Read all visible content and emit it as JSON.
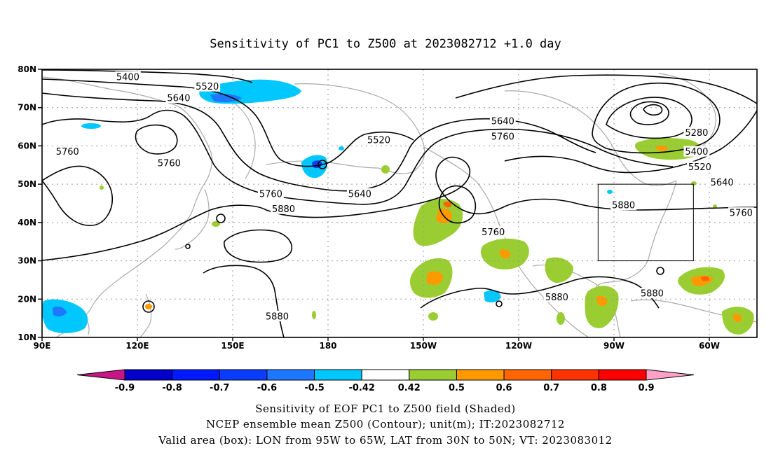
{
  "title": "Sensitivity of PC1 to Z500 at 2023082712 +1.0 day",
  "map": {
    "lat_labels": [
      "80N",
      "70N",
      "60N",
      "50N",
      "40N",
      "30N",
      "20N",
      "10N"
    ],
    "lon_labels": [
      "90E",
      "120E",
      "150E",
      "180",
      "150W",
      "120W",
      "90W",
      "60W"
    ],
    "grid": true,
    "valid_box": {
      "lon_range": [
        "95W",
        "65W"
      ],
      "lat_range": [
        "30N",
        "50N"
      ]
    },
    "contour_labels": [
      {
        "value": "5400",
        "lon": 117,
        "lat": 78
      },
      {
        "value": "5520",
        "lon": 142,
        "lat": 75.5
      },
      {
        "value": "5640",
        "lon": 133,
        "lat": 72.5
      },
      {
        "value": "5760",
        "lon": 98,
        "lat": 58.5
      },
      {
        "value": "5760",
        "lon": 130,
        "lat": 55.5
      },
      {
        "value": "5520",
        "lon": 196,
        "lat": 61.5
      },
      {
        "value": "5640",
        "lon": 235,
        "lat": 66.5
      },
      {
        "value": "5760",
        "lon": 235,
        "lat": 62.5
      },
      {
        "value": "5640",
        "lon": 190,
        "lat": 47.5
      },
      {
        "value": "5760",
        "lon": 162,
        "lat": 47.5
      },
      {
        "value": "5880",
        "lon": 166,
        "lat": 43.5
      },
      {
        "value": "5760",
        "lon": 232,
        "lat": 37.5
      },
      {
        "value": "5880",
        "lon": 273,
        "lat": 44.5
      },
      {
        "value": "5280",
        "lon": 296,
        "lat": 63.5
      },
      {
        "value": "5400",
        "lon": 296,
        "lat": 58.5
      },
      {
        "value": "5520",
        "lon": 297,
        "lat": 54.5
      },
      {
        "value": "5640",
        "lon": 304,
        "lat": 50.5
      },
      {
        "value": "5760",
        "lon": 310,
        "lat": 42.5
      },
      {
        "value": "5880",
        "lon": 164,
        "lat": 15.5
      },
      {
        "value": "5880",
        "lon": 252,
        "lat": 20.5
      },
      {
        "value": "5880",
        "lon": 282,
        "lat": 21.5
      }
    ]
  },
  "colorbar": {
    "labels": [
      "-0.9",
      "-0.8",
      "-0.7",
      "-0.6",
      "-0.5",
      "-0.42",
      "0.42",
      "0.5",
      "0.6",
      "0.7",
      "0.8",
      "0.9"
    ],
    "colors": [
      "#0000c8",
      "#0019ff",
      "#0a3cff",
      "#1e78ff",
      "#00c8ff",
      "#ffffff",
      "#9acd32",
      "#ff9900",
      "#ff6600",
      "#ff3300",
      "#ff0000"
    ],
    "low_end_color": "#c71585",
    "high_end_color": "#ffa0c8"
  },
  "footer": {
    "line1": "Sensitivity of EOF PC1 to Z500 field (Shaded)",
    "line2": "NCEP ensemble mean Z500 (Contour); unit(m); IT:2023082712",
    "line3": "Valid area (box): LON from 95W to 65W, LAT from 30N to 50N; VT: 2023083012"
  }
}
